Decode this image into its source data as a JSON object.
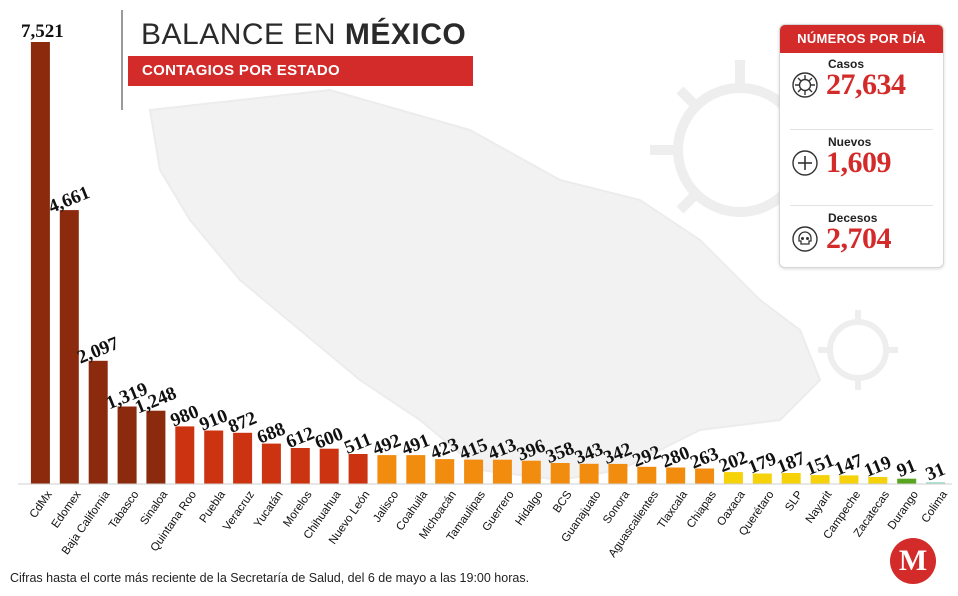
{
  "header": {
    "title_regular": "BALANCE EN ",
    "title_bold": "MÉXICO",
    "subtitle": "CONTAGIOS POR ESTADO"
  },
  "stats": {
    "heading": "NÚMEROS POR DÍA",
    "items": [
      {
        "label": "Casos",
        "value": "27,634",
        "icon": "virus-icon"
      },
      {
        "label": "Nuevos",
        "value": "1,609",
        "icon": "plus-circle-icon"
      },
      {
        "label": "Decesos",
        "value": "2,704",
        "icon": "skull-icon"
      }
    ]
  },
  "footnote": "Cifras hasta el corte más reciente de la Secretaría de Salud, del 6 de mayo a las 19:00 horas.",
  "logo_letter": "M",
  "colors": {
    "accent": "#d32a2a",
    "tier_high": "#8b2a0c",
    "tier_mid": "#cc3411",
    "tier_orange": "#f28c0f",
    "tier_yellow": "#f5d20a",
    "tier_green": "#5aa51f",
    "tier_teal": "#9fd9c8"
  },
  "chart_data": {
    "type": "bar",
    "categories": [
      "CdMx",
      "Edomex",
      "Baja California",
      "Tabasco",
      "Sinaloa",
      "Quintana Roo",
      "Puebla",
      "Veracruz",
      "Yucatán",
      "Morelos",
      "Chihuahua",
      "Nuevo León",
      "Jalisco",
      "Coahuila",
      "Michoacán",
      "Tamaulipas",
      "Guerrero",
      "Hidalgo",
      "BCS",
      "Guanajuato",
      "Sonora",
      "Aguascalientes",
      "Tlaxcala",
      "Chiapas",
      "Oaxaca",
      "Querétaro",
      "SLP",
      "Nayarit",
      "Campeche",
      "Zacatecas",
      "Durango",
      "Colima"
    ],
    "values": [
      7521,
      4661,
      2097,
      1319,
      1248,
      980,
      910,
      872,
      688,
      612,
      600,
      511,
      492,
      491,
      423,
      415,
      413,
      396,
      358,
      343,
      342,
      292,
      280,
      263,
      202,
      179,
      187,
      151,
      147,
      119,
      91,
      31
    ],
    "value_labels": [
      "7,521",
      "4,661",
      "2,097",
      "1,319",
      "1,248",
      "980",
      "910",
      "872",
      "688",
      "612",
      "600",
      "511",
      "492",
      "491",
      "423",
      "415",
      "413",
      "396",
      "358",
      "343",
      "342",
      "292",
      "280",
      "263",
      "202",
      "179",
      "187",
      "151",
      "147",
      "119",
      "91",
      "31"
    ],
    "color_tiers": [
      "high",
      "high",
      "high",
      "high",
      "high",
      "mid",
      "mid",
      "mid",
      "mid",
      "mid",
      "mid",
      "mid",
      "orange",
      "orange",
      "orange",
      "orange",
      "orange",
      "orange",
      "orange",
      "orange",
      "orange",
      "orange",
      "orange",
      "orange",
      "yellow",
      "yellow",
      "yellow",
      "yellow",
      "yellow",
      "yellow",
      "green",
      "teal"
    ],
    "title": "BALANCE EN MÉXICO",
    "subtitle": "CONTAGIOS POR ESTADO",
    "xlabel": "",
    "ylabel": "",
    "grid": false
  }
}
